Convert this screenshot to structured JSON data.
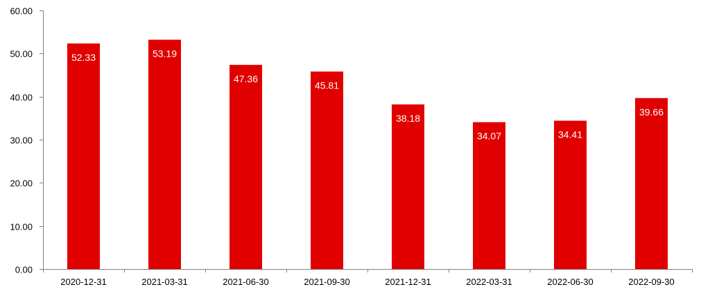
{
  "chart_data": {
    "type": "bar",
    "categories": [
      "2020-12-31",
      "2021-03-31",
      "2021-06-30",
      "2021-09-30",
      "2021-12-31",
      "2022-03-31",
      "2022-06-30",
      "2022-09-30"
    ],
    "values": [
      52.33,
      53.19,
      47.36,
      45.81,
      38.18,
      34.07,
      34.41,
      39.66
    ],
    "data_labels": [
      "52.33",
      "53.19",
      "47.36",
      "45.81",
      "38.18",
      "34.07",
      "34.41",
      "39.66"
    ],
    "title": "",
    "xlabel": "",
    "ylabel": "",
    "ylim": [
      0,
      60
    ],
    "yticks": [
      0,
      10,
      20,
      30,
      40,
      50,
      60
    ],
    "ytick_labels": [
      "0.00",
      "10.00",
      "20.00",
      "30.00",
      "40.00",
      "50.00",
      "60.00"
    ],
    "bar_color": "#e00000",
    "data_label_color": "#ffffff",
    "axis_color": "#808080",
    "grid": false,
    "legend": "none"
  }
}
